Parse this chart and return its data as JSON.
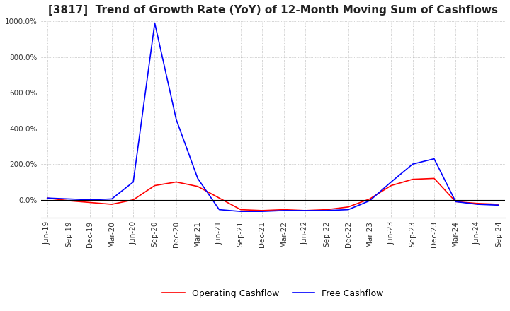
{
  "title": "[3817]  Trend of Growth Rate (YoY) of 12-Month Moving Sum of Cashflows",
  "title_fontsize": 11,
  "ylim": [
    -100,
    1000
  ],
  "yticks": [
    0,
    200,
    400,
    600,
    800,
    1000
  ],
  "ytick_labels": [
    "0.0%",
    "200.0%",
    "400.0%",
    "600.0%",
    "800.0%",
    "1000.0%"
  ],
  "background_color": "#ffffff",
  "grid_color": "#aaaaaa",
  "operating_color": "#ff0000",
  "free_color": "#0000ff",
  "legend_labels": [
    "Operating Cashflow",
    "Free Cashflow"
  ],
  "x_labels": [
    "Jun-19",
    "Sep-19",
    "Dec-19",
    "Mar-20",
    "Jun-20",
    "Sep-20",
    "Dec-20",
    "Mar-21",
    "Jun-21",
    "Sep-21",
    "Dec-21",
    "Mar-22",
    "Jun-22",
    "Sep-22",
    "Dec-22",
    "Mar-23",
    "Jun-23",
    "Sep-23",
    "Dec-23",
    "Mar-24",
    "Jun-24",
    "Sep-24"
  ],
  "operating_cashflow": [
    10,
    -5,
    -15,
    -25,
    0,
    80,
    100,
    75,
    10,
    -55,
    -60,
    -55,
    -60,
    -55,
    -40,
    5,
    80,
    115,
    120,
    -10,
    -20,
    -25
  ],
  "free_cashflow": [
    10,
    5,
    0,
    5,
    100,
    990,
    450,
    120,
    -55,
    -65,
    -65,
    -60,
    -60,
    -60,
    -55,
    -5,
    100,
    200,
    230,
    -10,
    -25,
    -30
  ]
}
